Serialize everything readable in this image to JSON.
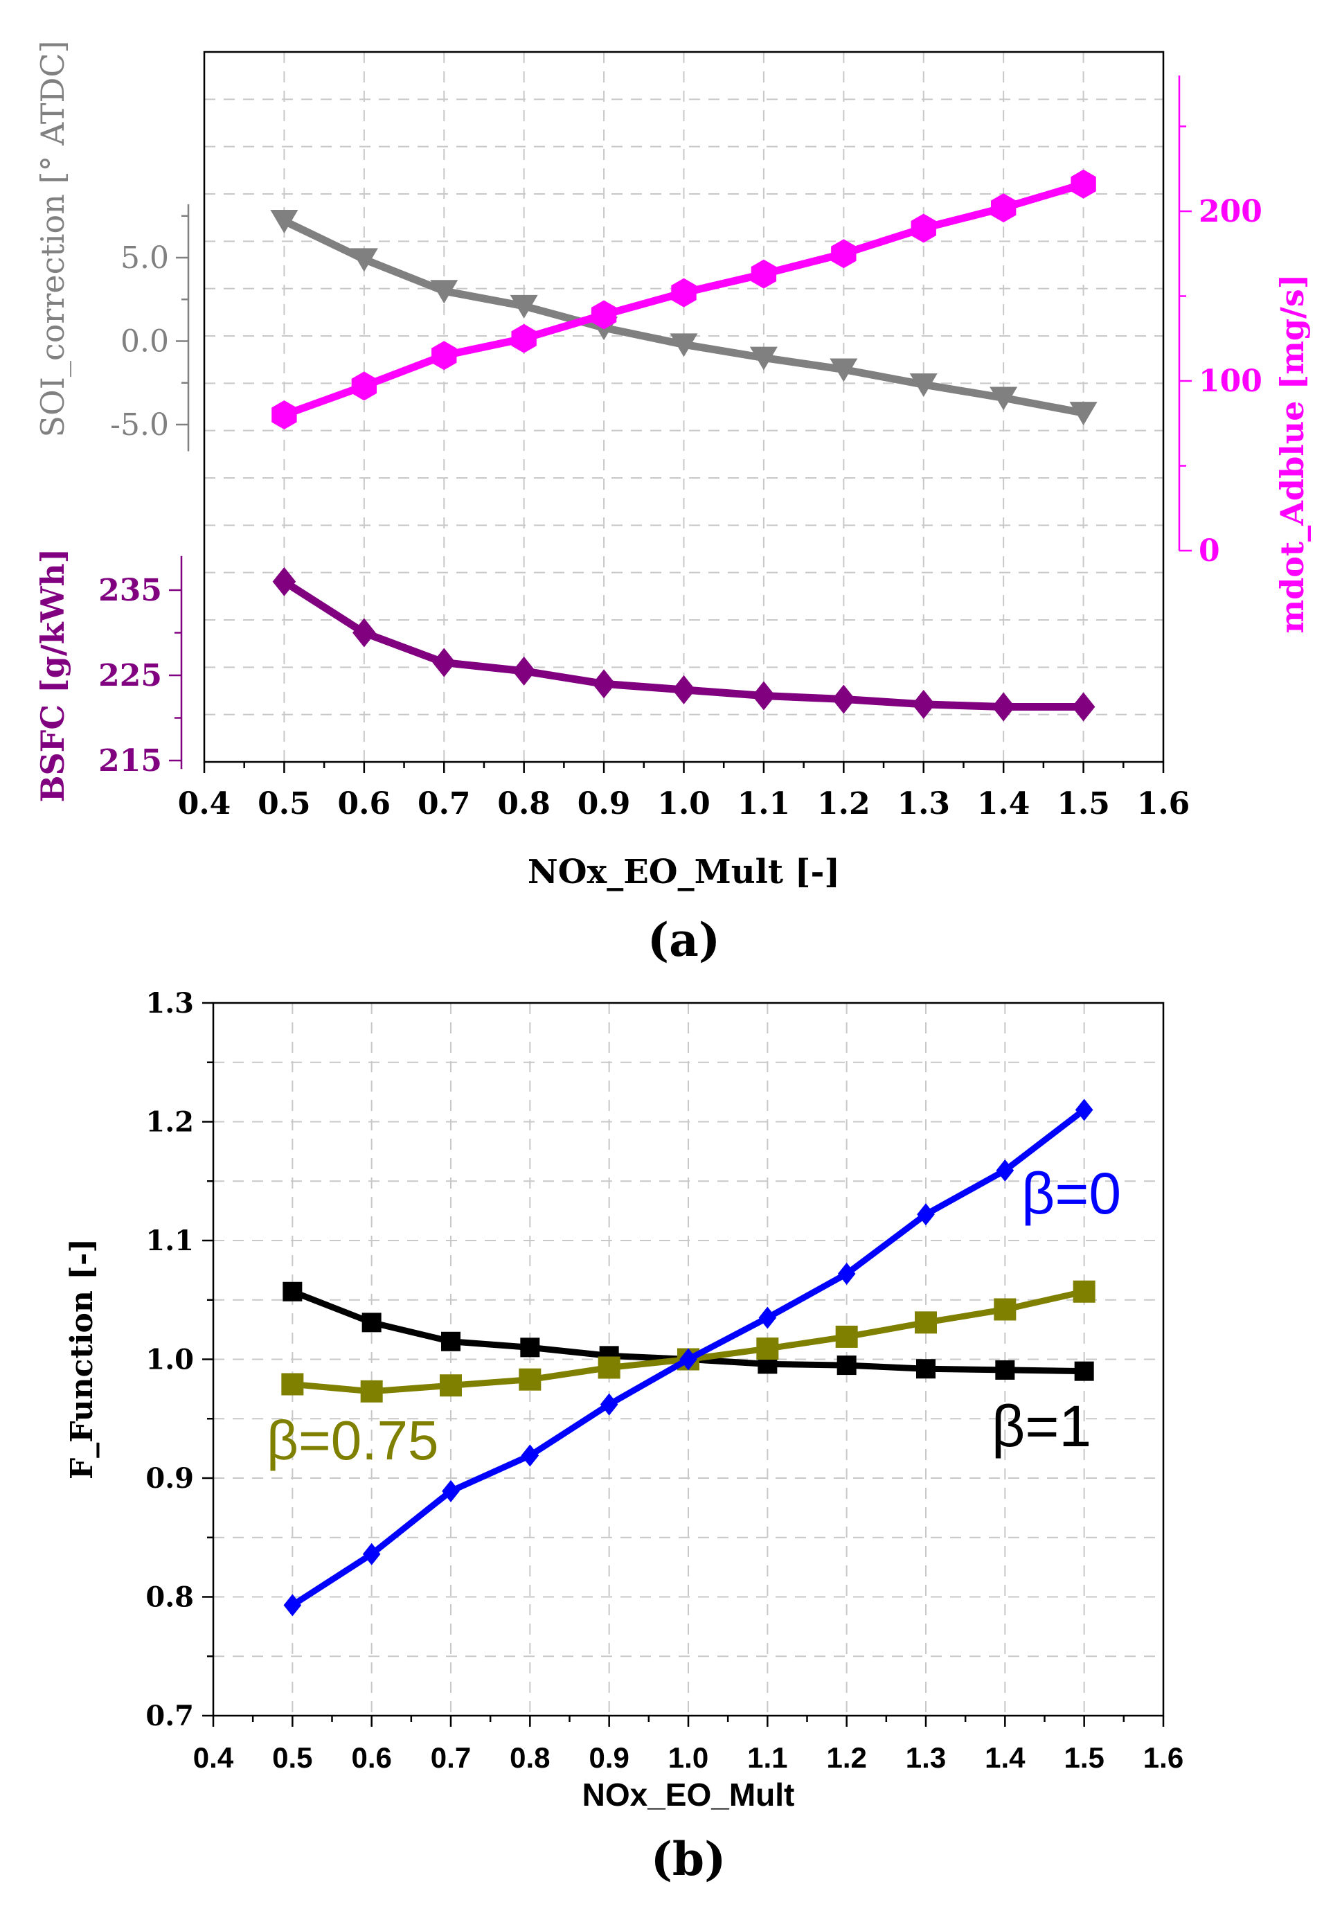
{
  "chart_data": [
    {
      "panel": "(a)",
      "type": "line",
      "x": [
        0.5,
        0.6,
        0.7,
        0.8,
        0.9,
        1.0,
        1.1,
        1.2,
        1.3,
        1.4,
        1.5
      ],
      "xlim": [
        0.4,
        1.6
      ],
      "xticks": [
        "0.4",
        "0.6",
        "0.5",
        "0.7",
        "0.8",
        "0.9",
        "1.0",
        "1.1",
        "1.2",
        "1.3",
        "1.4",
        "1.5",
        "1.6"
      ],
      "xticklabels": [
        "0.4",
        "0.5",
        "0.6",
        "0.7",
        "0.8",
        "0.9",
        "1.0",
        "1.1",
        "1.2",
        "1.3",
        "1.4",
        "1.5",
        "1.6"
      ],
      "xlabel": "NOx_EO_Mult [-]",
      "grid": true,
      "series": [
        {
          "name": "SOI_correction",
          "axis_label": "SOI_correction [° ATDC]",
          "color": "#808080",
          "marker": "triangle-down",
          "values": [
            7.2,
            4.9,
            3.0,
            2.1,
            0.8,
            -0.2,
            -1.0,
            -1.7,
            -2.6,
            -3.4,
            -4.3
          ],
          "ticks": [
            "5.0",
            "0.0",
            "-5.0"
          ]
        },
        {
          "name": "mdot_Adblue",
          "axis_label": "mdot_Adblue [mg/s]",
          "color": "#ff00ff",
          "marker": "hexagon",
          "values": [
            80,
            97,
            115,
            125,
            139,
            152,
            163,
            175,
            190,
            202,
            216
          ],
          "ticks": [
            "0",
            "100",
            "200"
          ]
        },
        {
          "name": "BSFC",
          "axis_label": "BSFC [g/kWh]",
          "color": "#800080",
          "marker": "diamond",
          "values": [
            236.0,
            230.0,
            226.5,
            225.5,
            224.0,
            223.3,
            222.6,
            222.2,
            221.6,
            221.3,
            221.3
          ],
          "ticks": [
            "235",
            "225",
            "215"
          ]
        }
      ],
      "panel_label": "(a)"
    },
    {
      "panel": "(b)",
      "type": "line",
      "x": [
        0.5,
        0.6,
        0.7,
        0.8,
        0.9,
        1.0,
        1.1,
        1.2,
        1.3,
        1.4,
        1.5
      ],
      "xlim": [
        0.4,
        1.6
      ],
      "ylim": [
        0.7,
        1.3
      ],
      "xticklabels": [
        "0.4",
        "0.5",
        "0.6",
        "0.7",
        "0.8",
        "0.9",
        "1.0",
        "1.1",
        "1.2",
        "1.3",
        "1.4",
        "1.5",
        "1.6"
      ],
      "yticklabels": [
        "0.7",
        "0.8",
        "0.9",
        "1.0",
        "1.1",
        "1.2",
        "1.3"
      ],
      "xlabel": "NOx_EO_Mult",
      "ylabel": "F_Function [-]",
      "grid": true,
      "series": [
        {
          "name": "β=0",
          "color": "#0000ff",
          "marker": "diamond",
          "values": [
            0.793,
            0.836,
            0.889,
            0.919,
            0.962,
            1.0,
            1.035,
            1.072,
            1.122,
            1.159,
            1.21
          ]
        },
        {
          "name": "β=0.75",
          "color": "#808000",
          "marker": "square",
          "values": [
            0.979,
            0.973,
            0.978,
            0.983,
            0.993,
            1.0,
            1.009,
            1.019,
            1.031,
            1.042,
            1.057
          ]
        },
        {
          "name": "β=1",
          "color": "#000000",
          "marker": "square",
          "values": [
            1.057,
            1.031,
            1.015,
            1.01,
            1.003,
            1.0,
            0.996,
            0.995,
            0.992,
            0.991,
            0.99
          ]
        }
      ],
      "panel_label": "(b)"
    }
  ]
}
